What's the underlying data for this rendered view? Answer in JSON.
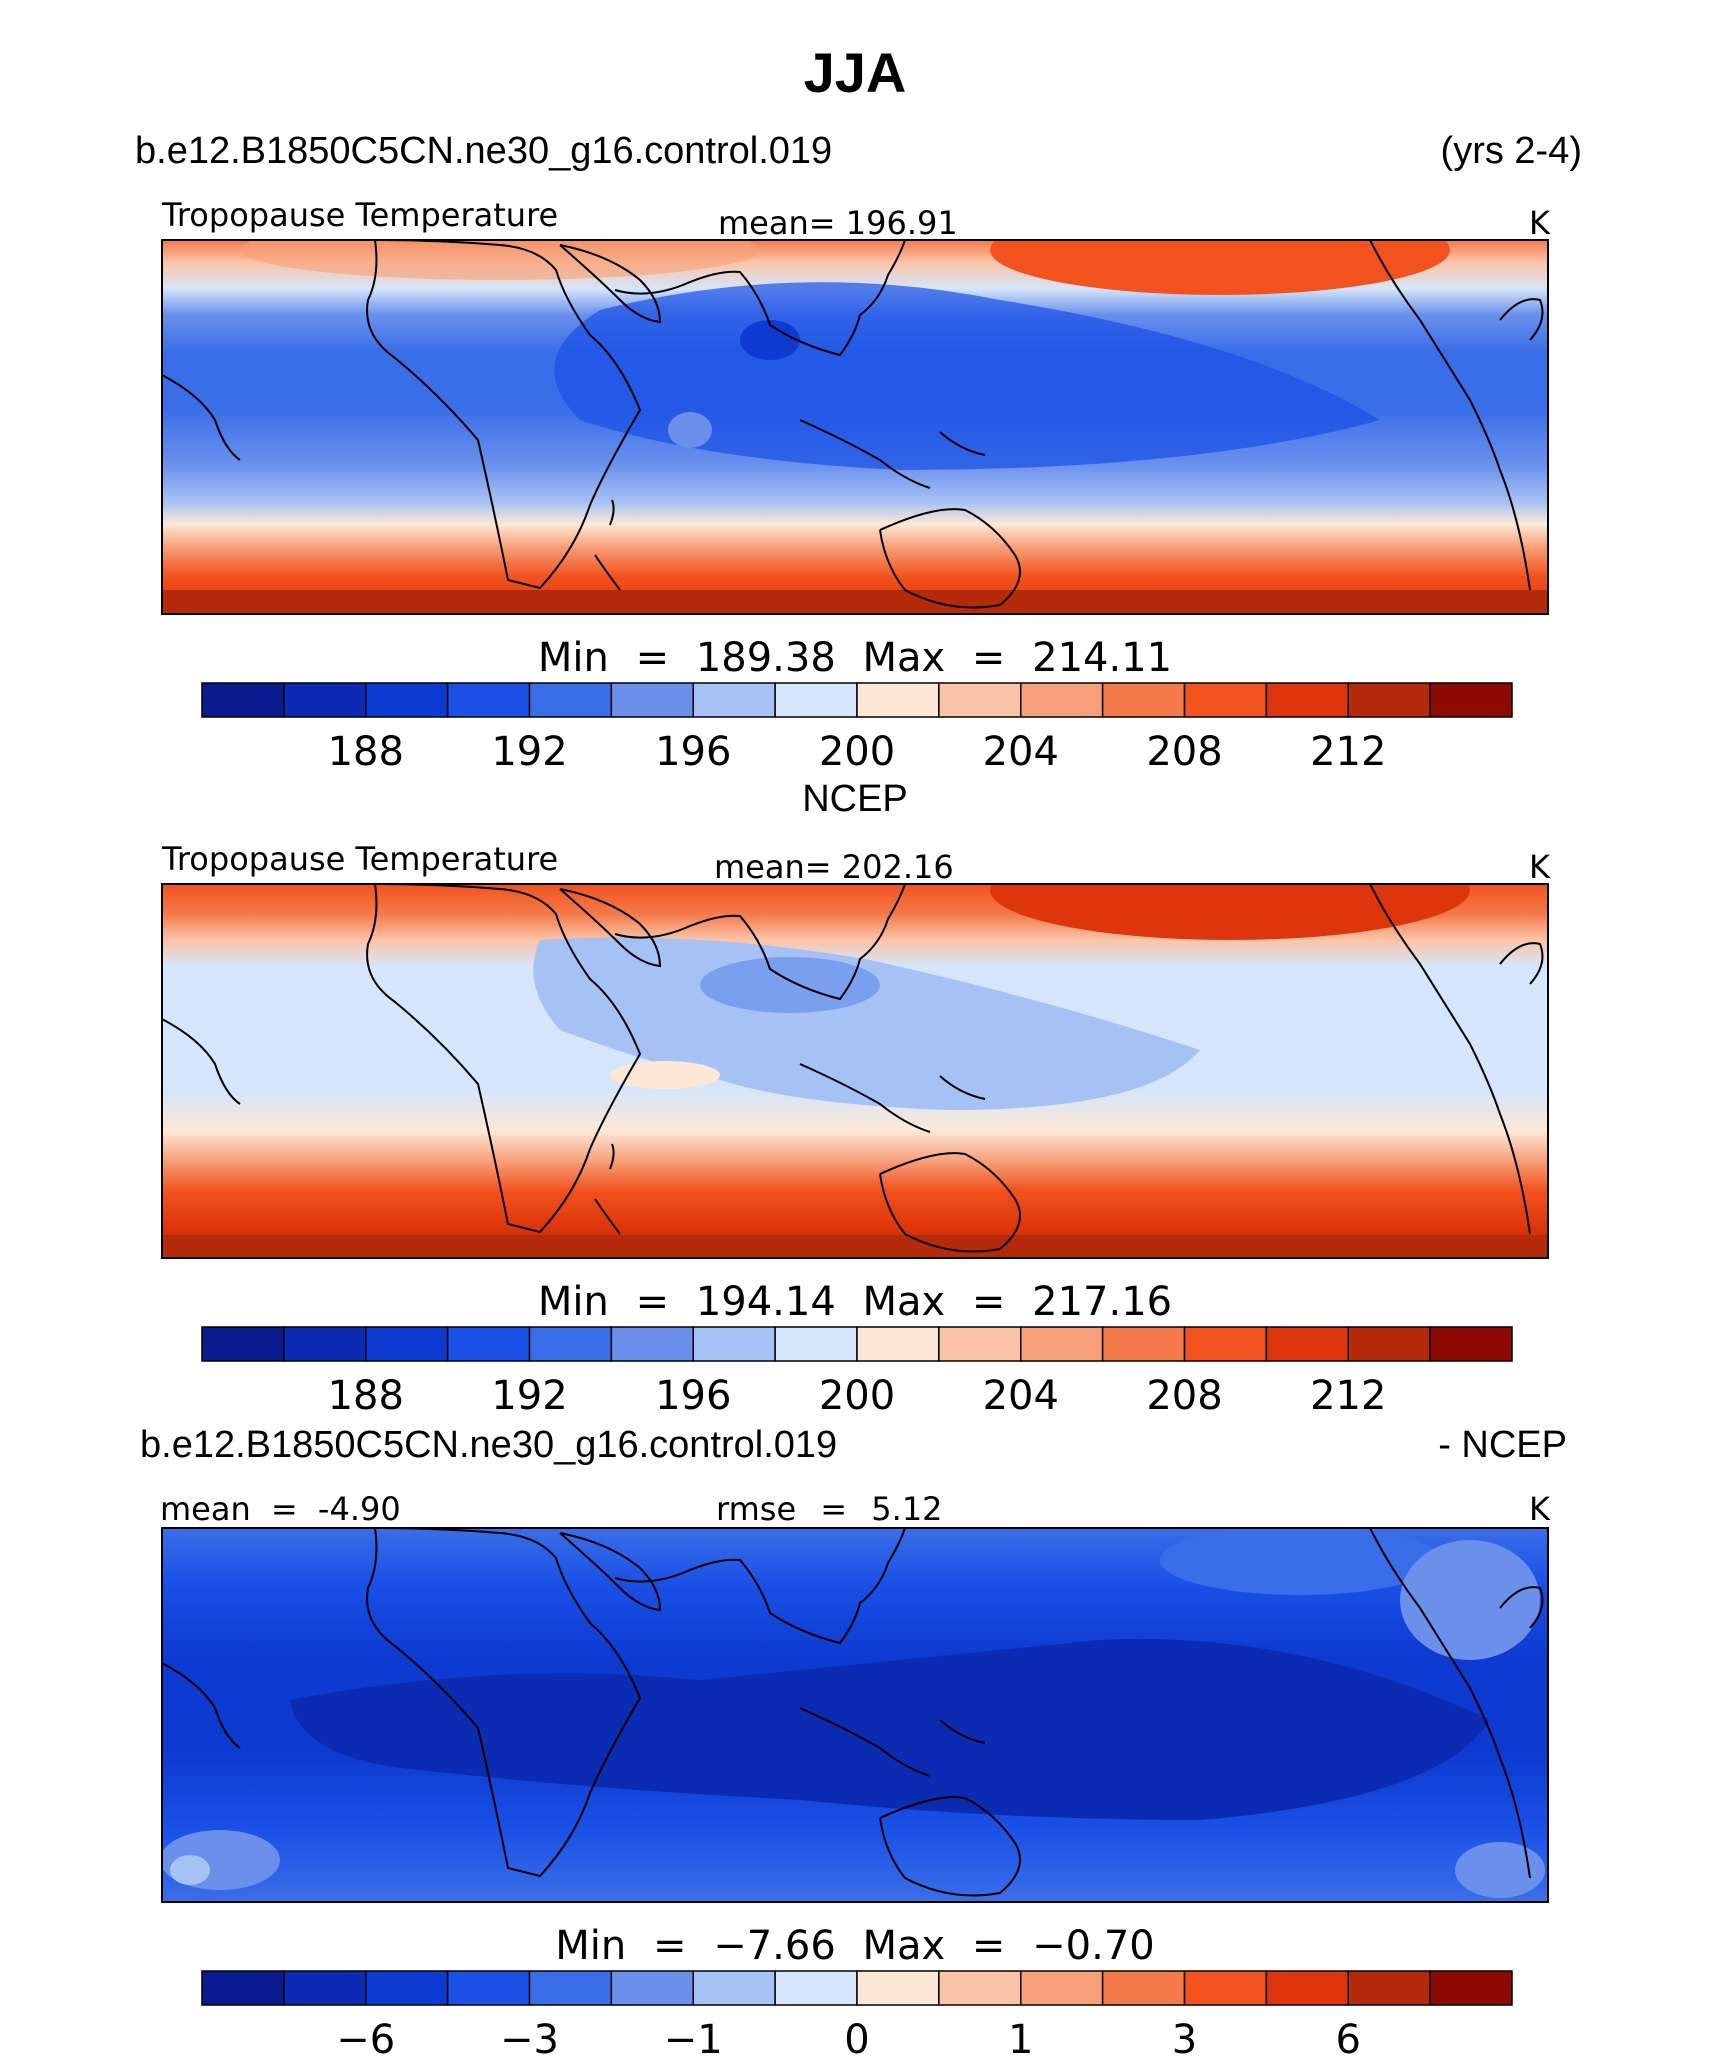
{
  "title": "JJA",
  "panel1": {
    "case_name": "b.e12.B1850C5CN.ne30_g16.control.019",
    "years": "(yrs 2-4)",
    "variable": "Tropopause Temperature",
    "mean_text": "mean= 196.91",
    "units": "K",
    "minmax_text": "Min = 189.38 Max = 214.11"
  },
  "panel2": {
    "name": "NCEP",
    "variable": "Tropopause Temperature",
    "mean_text": "mean= 202.16",
    "units": "K",
    "minmax_text": "Min = 194.14 Max = 217.16"
  },
  "panel3": {
    "case_name": "b.e12.B1850C5CN.ne30_g16.control.019",
    "minus_label": "- NCEP",
    "mean_text": "mean = -4.90",
    "rmse_text": "rmse = 5.12",
    "units": "K",
    "minmax_text": "Min = −7.66 Max = −0.70"
  },
  "colorbar": {
    "colors": [
      "#0a1b8f",
      "#0b2bb3",
      "#0d3ad0",
      "#1a50e6",
      "#3a6ee8",
      "#6a90ec",
      "#a6c1f4",
      "#d5e5fb",
      "#fde8d6",
      "#fbc4a8",
      "#f7a07a",
      "#f57a4b",
      "#f2521e",
      "#dd350c",
      "#b52a0a",
      "#8e0b04"
    ],
    "ticks_abs": [
      "188",
      "192",
      "196",
      "200",
      "204",
      "208",
      "212"
    ],
    "ticks_diff": [
      "−6",
      "−3",
      "−1",
      "0",
      "1",
      "3",
      "6"
    ]
  },
  "chart_data": [
    {
      "type": "heatmap",
      "title": "Tropopause Temperature",
      "case": "b.e12.B1850C5CN.ne30_g16.control.019",
      "mean": 196.91,
      "min": 189.38,
      "max": 214.11,
      "units": "K",
      "contour_levels": [
        186,
        188,
        190,
        192,
        194,
        196,
        198,
        200,
        202,
        204,
        206,
        208,
        210,
        212,
        214
      ]
    },
    {
      "type": "heatmap",
      "title": "Tropopause Temperature",
      "case": "NCEP",
      "mean": 202.16,
      "min": 194.14,
      "max": 217.16,
      "units": "K",
      "contour_levels": [
        186,
        188,
        190,
        192,
        194,
        196,
        198,
        200,
        202,
        204,
        206,
        208,
        210,
        212,
        214
      ]
    },
    {
      "type": "heatmap",
      "title": "b.e12.B1850C5CN.ne30_g16.control.019 - NCEP",
      "mean": -4.9,
      "rmse": 5.12,
      "min": -7.66,
      "max": -0.7,
      "units": "K",
      "contour_levels": [
        -8,
        -6,
        -4,
        -3,
        -2,
        -1,
        -0.5,
        0,
        0.5,
        1,
        2,
        3,
        4,
        6,
        8
      ]
    }
  ]
}
